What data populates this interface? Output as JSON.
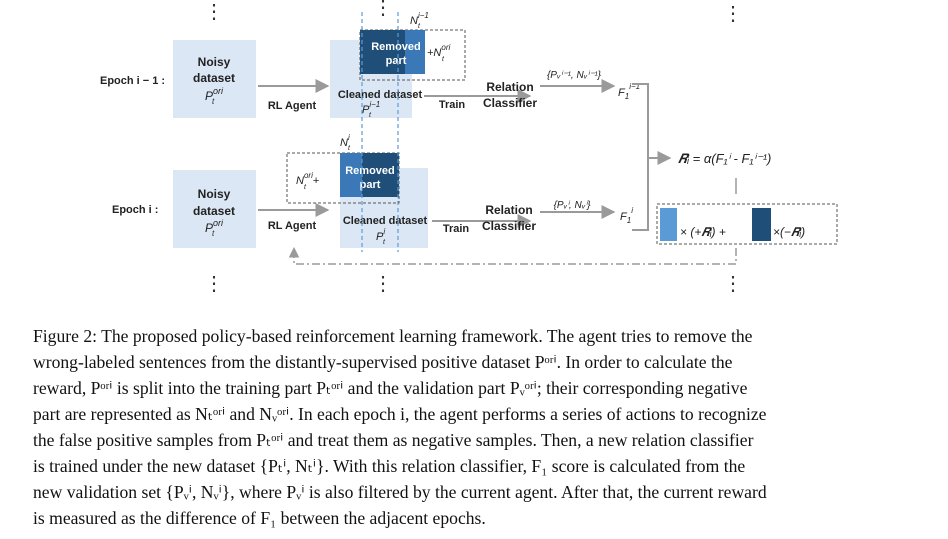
{
  "figure": {
    "epoch_prev_label": "Epoch i − 1 :",
    "epoch_cur_label": "Epoch i :",
    "noisy_line1": "Noisy",
    "noisy_line2": "dataset",
    "noisy_p": "P",
    "noisy_p_sup": "ori",
    "noisy_p_sub": "t",
    "rl_agent": "RL Agent",
    "removed_line1": "Removed",
    "removed_line2": "part",
    "plus_n_ori_prev": "+N",
    "n_ori_sup": "ori",
    "n_ori_sub": "t",
    "n_ori_plus_cur": "N",
    "plus_sign": "+",
    "n_prev": "N",
    "n_prev_sup": "i−1",
    "n_prev_sub": "t",
    "n_cur": "N",
    "n_cur_sup": "i",
    "n_cur_sub": "t",
    "cleaned_dataset": "Cleaned dataset",
    "p_prev": "P",
    "p_prev_sup": "i−1",
    "p_prev_sub": "t",
    "p_cur": "P",
    "p_cur_sup": "i",
    "p_cur_sub": "t",
    "train": "Train",
    "relation": "Relation",
    "classifier": "Classifier",
    "val_set_prev": "{Pᵥⁱ⁻¹, Nᵥⁱ⁻¹}",
    "val_set_cur": "{Pᵥⁱ, Nᵥⁱ}",
    "f1_prev": "F",
    "f1_prev_sub": "1",
    "f1_prev_sup": "i−1",
    "f1_cur": "F",
    "f1_cur_sub": "1",
    "f1_cur_sup": "i",
    "reward_formula": "𝑹ᵢ = α(F₁ⁱ - F₁ⁱ⁻¹)",
    "reward_pos": "× (+𝑹ᵢ) +",
    "reward_neg": "×(−𝑹ᵢ)",
    "vdots": "⋮"
  },
  "caption": {
    "lines": [
      "Figure 2: The proposed policy-based reinforcement learning framework. The agent tries to remove the",
      "wrong-labeled sentences from the distantly-supervised positive dataset Pᵒʳⁱ. In order to calculate the",
      "reward, Pᵒʳⁱ is split into the training part Pₜᵒʳⁱ and the validation part Pᵥᵒʳⁱ; their corresponding negative",
      "part are represented as Nₜᵒʳⁱ and Nᵥᵒʳⁱ. In each epoch i, the agent performs a series of actions to recognize",
      "the false positive samples from Pₜᵒʳⁱ and treat them as negative samples. Then, a new relation classifier",
      "is trained under the new dataset {Pₜⁱ, Nₜⁱ}. With this relation classifier, F₁ score is calculated from the",
      "new validation set {Pᵥⁱ, Nᵥⁱ}, where Pᵥⁱ is also filtered by the current agent. After that, the current reward",
      "is measured as the difference of F₁ between the adjacent epochs."
    ]
  },
  "colors": {
    "light_box": "#dbe7f4",
    "removed_dark": "#1f4e79",
    "removed_mid": "#3a78b8",
    "arrow": "#9a9a9a",
    "dashed": "#555555",
    "blue_dash": "#5b9bd5"
  }
}
